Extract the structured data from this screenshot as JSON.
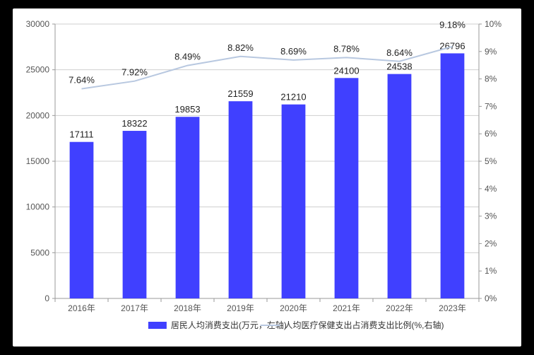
{
  "chart": {
    "type": "bar+line",
    "background_color": "#ffffff",
    "grid_color": "#cfcfcf",
    "bar_color": "#4040ff",
    "line_color": "#b8c8e0",
    "categories": [
      "2016年",
      "2017年",
      "2018年",
      "2019年",
      "2020年",
      "2021年",
      "2022年",
      "2023年"
    ],
    "bars": {
      "values": [
        17111,
        18322,
        19853,
        21559,
        21210,
        24100,
        24538,
        26796
      ],
      "label": "居民人均消费支出(万元，左轴)"
    },
    "line": {
      "values_pct": [
        7.64,
        7.92,
        8.49,
        8.82,
        8.69,
        8.78,
        8.64,
        9.18
      ],
      "label": "人均医疗保健支出占消费支出比例(%,右轴)"
    },
    "left_axis": {
      "min": 0,
      "max": 30000,
      "step": 5000,
      "label_fontsize": 12
    },
    "right_axis": {
      "min": 0,
      "max": 10,
      "step": 1,
      "suffix": "%",
      "label_fontsize": 12
    },
    "bar_width_ratio": 0.45,
    "label_fontsize": 13,
    "axis_fontsize": 12,
    "legend_fontsize": 12
  }
}
